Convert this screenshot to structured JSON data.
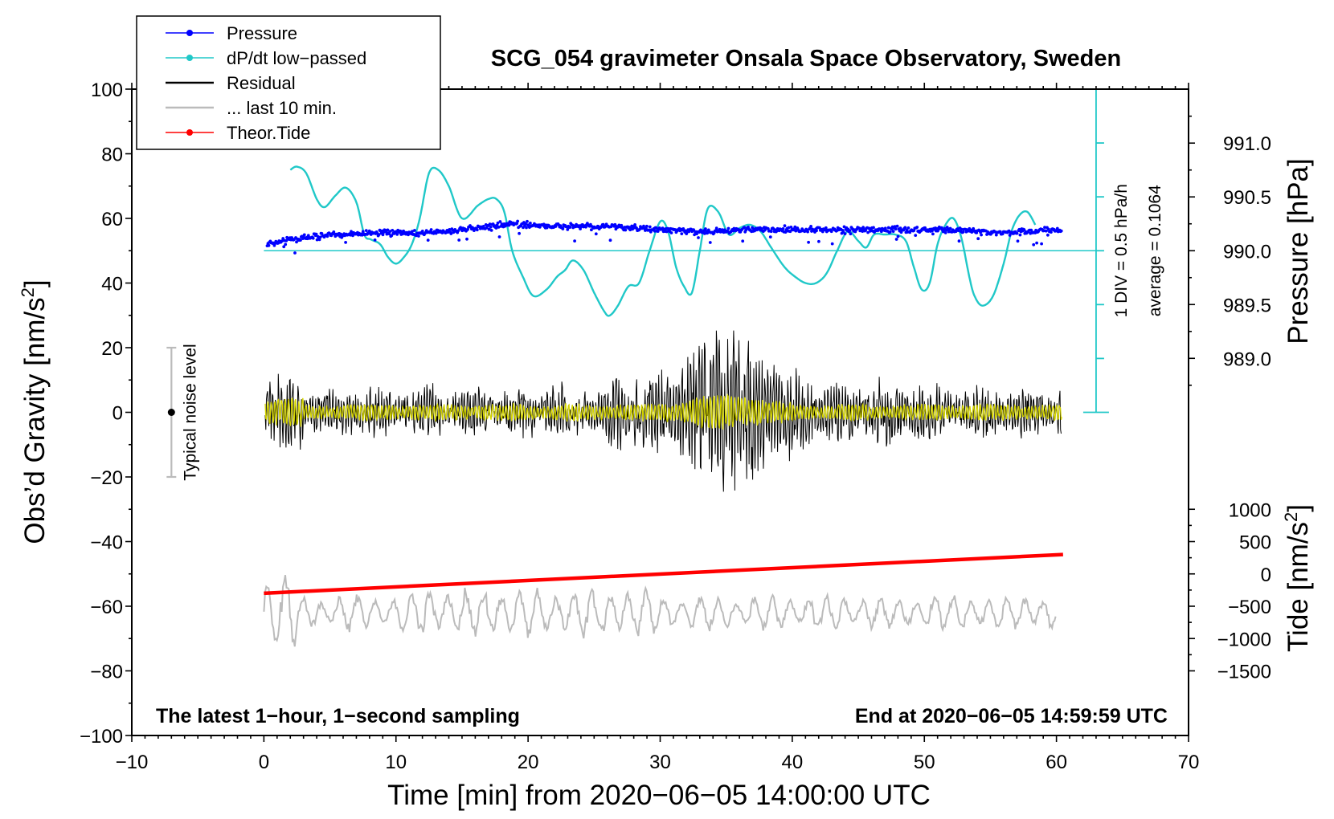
{
  "chart_data": {
    "type": "line",
    "title": "SCG_054 gravimeter Onsala Space Observatory, Sweden",
    "xlabel": "Time [min] from 2020−06−05 14:00:00 UTC",
    "ylabel": "Obs’d Gravity [nm/s²]",
    "ylabel_text": "Obs’d Gravity [nm/s",
    "ylabel_sup": "2",
    "ylabel_end": "]",
    "xlim": [
      -10,
      70
    ],
    "ylim": [
      -100,
      100
    ],
    "x_ticks": [
      "−10",
      "0",
      "10",
      "20",
      "30",
      "40",
      "50",
      "60",
      "70"
    ],
    "x_tick_values": [
      -10,
      0,
      10,
      20,
      30,
      40,
      50,
      60,
      70
    ],
    "y_ticks": [
      "100",
      "80",
      "60",
      "40",
      "20",
      "0",
      "−20",
      "−40",
      "−60",
      "−80",
      "−100"
    ],
    "y_tick_values": [
      100,
      80,
      60,
      40,
      20,
      0,
      -20,
      -40,
      -60,
      -80,
      -100
    ],
    "pressure_axis": {
      "label": "Pressure [hPa]",
      "ticks": [
        "991.0",
        "990.5",
        "990.0",
        "989.5",
        "989.0"
      ],
      "values": [
        991.0,
        990.5,
        990.0,
        989.5,
        989.0
      ],
      "ref_gravity": 50,
      "ref_value": 990.0,
      "gravity_per_hpa": 33.3
    },
    "tide_axis": {
      "label_text": "Tide [nm/s",
      "label_sup": "2",
      "label_end": "]",
      "ticks": [
        "1000",
        "500",
        "0",
        "−500",
        "−1000",
        "−1500"
      ],
      "values": [
        1000,
        500,
        0,
        -500,
        -1000,
        -1500
      ],
      "gravity_per_unit": 0.02,
      "zero_gravity": -50
    },
    "legend": [
      {
        "label": "Pressure",
        "color": "#0000ff",
        "marker": true
      },
      {
        "label": "dP/dt low−passed",
        "color": "#20c8c8",
        "marker": true
      },
      {
        "label": "Residual",
        "color": "#000000",
        "marker": false
      },
      {
        "label": "... last 10 min.",
        "color": "#bbbbbb",
        "marker": false
      },
      {
        "label": "Theor.Tide",
        "color": "#ff0000",
        "marker": true
      }
    ],
    "dpdt_scale": {
      "div_label": "1 DIV = 0.5 hPa/h",
      "average_label": "average = 0.1064",
      "x": 63,
      "y_range": [
        0,
        100
      ],
      "zero_line_gravity": 50,
      "color": "#20c8c8"
    },
    "noise": {
      "label": "Typical noise level",
      "x": -7,
      "center": 0,
      "range": [
        -20,
        20
      ]
    },
    "annotations": {
      "bottom_left": "The latest 1−hour, 1−second sampling",
      "bottom_right": "End at 2020−06−05 14:59:59 UTC"
    },
    "series": [
      {
        "name": "Pressure",
        "color": "#0000ff",
        "x": [
          0,
          2,
          4,
          6,
          8,
          10,
          12,
          14,
          16,
          18,
          19,
          20,
          22,
          24,
          26,
          28,
          30,
          32,
          34,
          36,
          38,
          40,
          42,
          44,
          46,
          48,
          50,
          52,
          54,
          56,
          58,
          60
        ],
        "y": [
          52,
          53.5,
          54.5,
          55,
          55.5,
          55.5,
          55.5,
          56,
          57,
          58,
          58.3,
          58,
          57.5,
          57.5,
          57.5,
          57,
          56.5,
          56,
          56,
          56.5,
          56.5,
          56.5,
          56.5,
          56.5,
          56.5,
          56.5,
          56.5,
          56.5,
          56,
          55.5,
          56,
          56.5
        ]
      },
      {
        "name": "dP/dt low-passed",
        "color": "#20c8c8",
        "x": [
          2,
          2.5,
          3.2,
          4,
          4.6,
          5.4,
          6.2,
          7,
          7.6,
          8.1,
          8.8,
          9.4,
          10,
          10.6,
          11.2,
          11.8,
          12.5,
          13.2,
          14,
          15,
          16.2,
          17,
          17.6,
          18.2,
          18.8,
          19.6,
          20.4,
          21.4,
          22.2,
          22.8,
          23.4,
          24.2,
          25,
          25.8,
          26.2,
          26.8,
          27.6,
          28.4,
          29.2,
          30,
          30.6,
          31.2,
          31.8,
          32.4,
          33,
          33.6,
          34.4,
          35.2,
          36,
          36.8,
          37.6,
          38.4,
          39.4,
          40.2,
          41,
          41.8,
          42.6,
          43.4,
          44.2,
          45,
          45.6,
          46.2,
          47,
          47.8,
          48.6,
          49.2,
          49.8,
          50.4,
          51,
          51.6,
          52.2,
          52.8,
          53.4,
          53.8,
          54.4,
          55.2,
          56,
          56.6,
          57.2,
          57.8,
          58.4
        ],
        "y": [
          75,
          76,
          74,
          66,
          63.5,
          67,
          69.5,
          65,
          55,
          53.5,
          52,
          48,
          46,
          48,
          52,
          60,
          74,
          75,
          70,
          60,
          64,
          66,
          66,
          62,
          50,
          42,
          36,
          38,
          42,
          44,
          47,
          44,
          37,
          31,
          30,
          33,
          39,
          40,
          50,
          59,
          56,
          45,
          39,
          37,
          50,
          63,
          62,
          55,
          57,
          58,
          56,
          51,
          45,
          42,
          40,
          40,
          43,
          50,
          56,
          53,
          51,
          55,
          55,
          55,
          53,
          45,
          38,
          40,
          52,
          58,
          60,
          54,
          42,
          36,
          33,
          36,
          46,
          56,
          61,
          62,
          58
        ]
      },
      {
        "name": "Theor.Tide",
        "color": "#ff0000",
        "x": [
          0,
          60.5
        ],
        "y": [
          -56,
          -44
        ]
      }
    ]
  }
}
